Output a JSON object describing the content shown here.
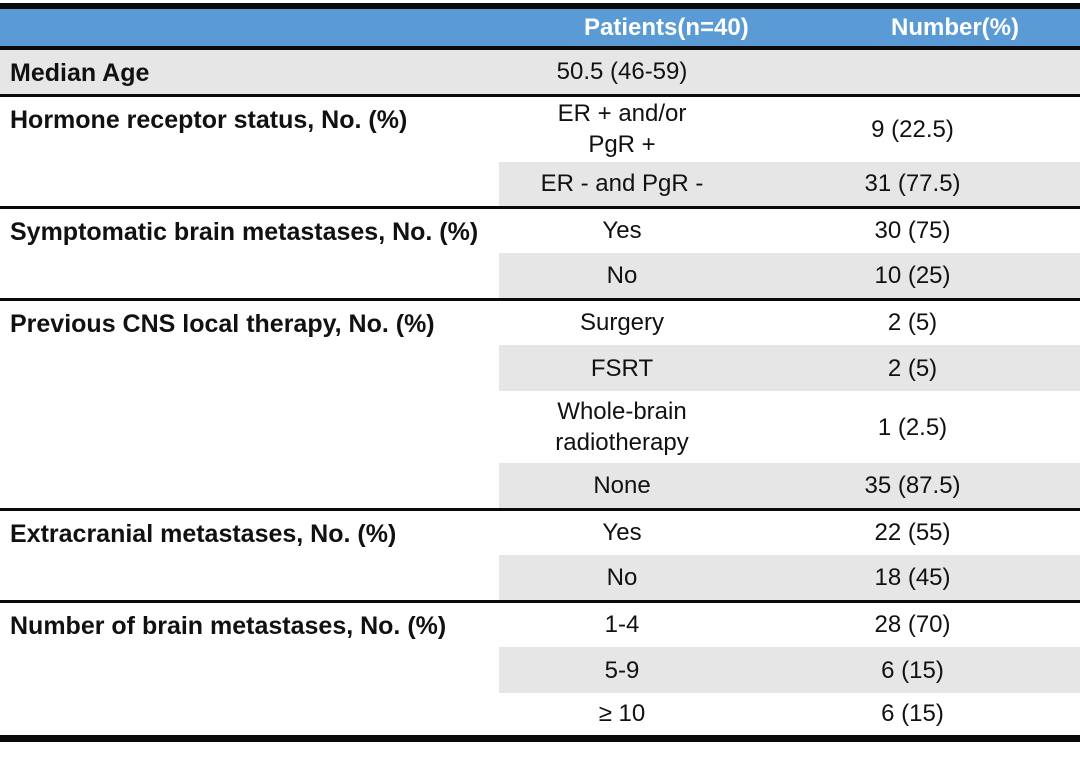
{
  "header": {
    "patients_label": "Patients(n=40)",
    "number_label": "Number(%)"
  },
  "sections": [
    {
      "label": "Median Age",
      "rows": [
        {
          "lines": [
            "50.5 (46-59)"
          ],
          "number": ""
        }
      ]
    },
    {
      "label": "Hormone receptor status, No. (%)",
      "rows": [
        {
          "lines": [
            "ER + and/or",
            "PgR +"
          ],
          "number": "9 (22.5)"
        },
        {
          "lines": [
            "ER - and PgR -"
          ],
          "number": "31 (77.5)"
        }
      ]
    },
    {
      "label": "Symptomatic brain metastases, No. (%)",
      "rows": [
        {
          "lines": [
            "Yes"
          ],
          "number": "30 (75)"
        },
        {
          "lines": [
            "No"
          ],
          "number": "10 (25)"
        }
      ]
    },
    {
      "label": "Previous CNS local therapy, No. (%)",
      "rows": [
        {
          "lines": [
            "Surgery"
          ],
          "number": "2 (5)"
        },
        {
          "lines": [
            "FSRT"
          ],
          "number": "2 (5)"
        },
        {
          "lines": [
            "Whole-brain",
            "radiotherapy"
          ],
          "number": "1 (2.5)"
        },
        {
          "lines": [
            "None"
          ],
          "number": "35 (87.5)"
        }
      ]
    },
    {
      "label": "Extracranial metastases, No. (%)",
      "rows": [
        {
          "lines": [
            "Yes"
          ],
          "number": "22 (55)"
        },
        {
          "lines": [
            "No"
          ],
          "number": "18 (45)"
        }
      ]
    },
    {
      "label": "Number of brain metastases, No. (%)",
      "rows": [
        {
          "lines": [
            "1-4"
          ],
          "number": "28 (70)"
        },
        {
          "lines": [
            "5-9"
          ],
          "number": "6 (15)"
        },
        {
          "lines": [
            "≥ 10"
          ],
          "number": "6 (15)"
        }
      ]
    }
  ],
  "colors": {
    "header_bg": "#5b9bd5",
    "header_text": "#ffffff",
    "row_shade": "#e7e6e6",
    "border_color": "#0a0a0a",
    "text_color": "#111111"
  }
}
